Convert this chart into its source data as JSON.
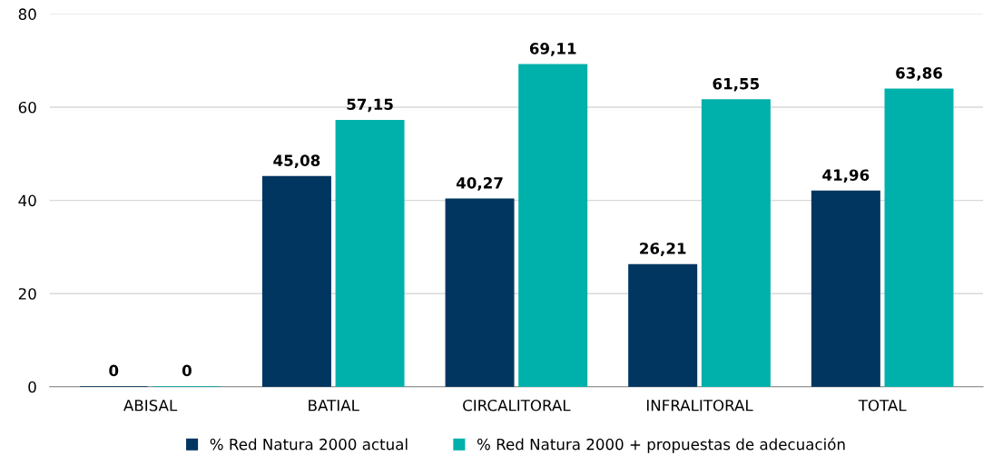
{
  "chart_data": {
    "type": "bar",
    "categories": [
      "ABISAL",
      "BATIAL",
      "CIRCALITORAL",
      "INFRALITORAL",
      "TOTAL"
    ],
    "series": [
      {
        "name": "% Red Natura 2000 actual",
        "color": "#003660",
        "values": [
          0,
          45.08,
          40.27,
          26.21,
          41.96
        ],
        "value_labels": [
          "0",
          "45,08",
          "40,27",
          "26,21",
          "41,96"
        ]
      },
      {
        "name": "% Red Natura 2000 + propuestas de adecuación",
        "color": "#00b0aa",
        "values": [
          0,
          57.15,
          69.11,
          61.55,
          63.86
        ],
        "value_labels": [
          "0",
          "57,15",
          "69,11",
          "61,55",
          "63,86"
        ]
      }
    ],
    "ylim": [
      0,
      80
    ],
    "yticks": [
      0,
      20,
      40,
      60,
      80
    ],
    "grid": "y",
    "legend": "bottom"
  }
}
